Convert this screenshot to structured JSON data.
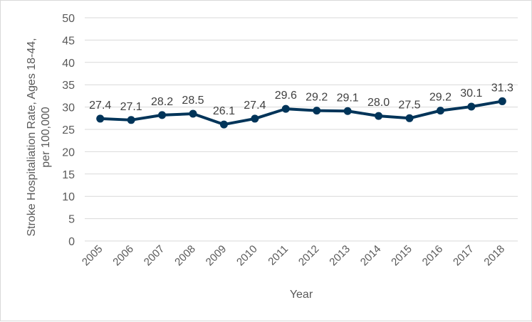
{
  "chart_data": {
    "type": "line",
    "x": [
      "2005",
      "2006",
      "2007",
      "2008",
      "2009",
      "2010",
      "2011",
      "2012",
      "2013",
      "2014",
      "2015",
      "2016",
      "2017",
      "2018"
    ],
    "values": [
      27.4,
      27.1,
      28.2,
      28.5,
      26.1,
      27.4,
      29.6,
      29.2,
      29.1,
      28.0,
      27.5,
      29.2,
      30.1,
      31.3
    ],
    "data_labels": [
      "27.4",
      "27.1",
      "28.2",
      "28.5",
      "26.1",
      "27.4",
      "29.6",
      "29.2",
      "29.1",
      "28.0",
      "27.5",
      "29.2",
      "30.1",
      "31.3"
    ],
    "xlabel": "Year",
    "ylabel_line1": "Stroke Hospitaliation Rate, Ages 18-44,",
    "ylabel_line2": "per 100,000",
    "ylim": [
      0,
      50
    ],
    "yticks": [
      "0",
      "5",
      "10",
      "15",
      "20",
      "25",
      "30",
      "35",
      "40",
      "45",
      "50"
    ],
    "grid": true,
    "line_color": "#003459"
  }
}
